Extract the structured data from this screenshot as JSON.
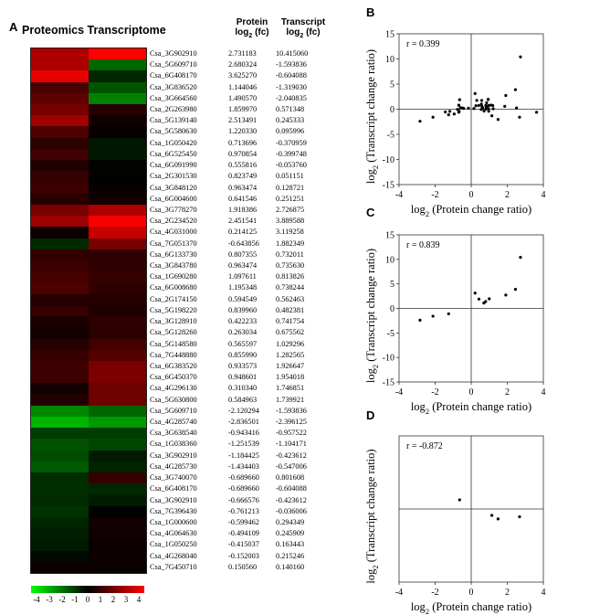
{
  "panels": {
    "A": "A",
    "B": "B",
    "C": "C",
    "D": "D"
  },
  "heatmap": {
    "title": "Proteomics Transcriptome",
    "col_protein": "Protein",
    "col_transcript": "Transcript",
    "log_label": "log",
    "log_sub": "2",
    "fc_label": "(fc)",
    "legend_ticks": [
      "-4",
      "-3",
      "-2",
      "-1",
      "0",
      "1",
      "2",
      "3",
      "4"
    ],
    "colors": {
      "positive": "#ff0000",
      "negative": "#00ff00",
      "zero": "#000000"
    },
    "rows": [
      {
        "gene": "Csa_3G902910",
        "protein": "2.731183",
        "transcript": "10.415060"
      },
      {
        "gene": "Csa_5G609710",
        "protein": "2.680324",
        "transcript": "-1.593836"
      },
      {
        "gene": "Csa_6G408170",
        "protein": "3.625270",
        "transcript": "-0.604088"
      },
      {
        "gene": "Csa_3G836520",
        "protein": "1.144046",
        "transcript": "-1.319030"
      },
      {
        "gene": "Csa_3G664560",
        "protein": "1.490570",
        "transcript": "-2.040835"
      },
      {
        "gene": "Csa_2G263980",
        "protein": "1.859970",
        "transcript": "0.571348"
      },
      {
        "gene": "Csa_5G139140",
        "protein": "2.513491",
        "transcript": "0.245333"
      },
      {
        "gene": "Csa_5G580630",
        "protein": "1.220330",
        "transcript": "0.095996"
      },
      {
        "gene": "Csa_1G050420",
        "protein": "0.713696",
        "transcript": "-0.370959"
      },
      {
        "gene": "Csa_6G525450",
        "protein": "0.970854",
        "transcript": "-0.399748"
      },
      {
        "gene": "Csa_6G091990",
        "protein": "0.555816",
        "transcript": "-0.053760"
      },
      {
        "gene": "Csa_2G301530",
        "protein": "0.823749",
        "transcript": "0.051151"
      },
      {
        "gene": "Csa_3G848120",
        "protein": "0.963474",
        "transcript": "0.128721"
      },
      {
        "gene": "Csa_6G004600",
        "protein": "0.641546",
        "transcript": "0.251251"
      },
      {
        "gene": "Csa_3G778270",
        "protein": "1.918386",
        "transcript": "2.726875"
      },
      {
        "gene": "Csa_2G234520",
        "protein": "2.451541",
        "transcript": "3.889588"
      },
      {
        "gene": "Csa_4G031000",
        "protein": "0.214125",
        "transcript": "3.119258"
      },
      {
        "gene": "Csa_7G051370",
        "protein": "-0.643856",
        "transcript": "1.882349"
      },
      {
        "gene": "Csa_6G133730",
        "protein": "0.807355",
        "transcript": "0.732011"
      },
      {
        "gene": "Csa_3G843780",
        "protein": "0.963474",
        "transcript": "0.735630"
      },
      {
        "gene": "Csa_1G690280",
        "protein": "1.097611",
        "transcript": "0.813826"
      },
      {
        "gene": "Csa_6G008680",
        "protein": "1.195348",
        "transcript": "0.738244"
      },
      {
        "gene": "Csa_2G174150",
        "protein": "0.594549",
        "transcript": "0.562463"
      },
      {
        "gene": "Csa_5G198220",
        "protein": "0.839960",
        "transcript": "0.482381"
      },
      {
        "gene": "Csa_3G128910",
        "protein": "0.422233",
        "transcript": "0.741754"
      },
      {
        "gene": "Csa_5G128260",
        "protein": "0.263034",
        "transcript": "0.675562"
      },
      {
        "gene": "Csa_5G148580",
        "protein": "0.565597",
        "transcript": "1.029296"
      },
      {
        "gene": "Csa_7G448880",
        "protein": "0.855990",
        "transcript": "1.282565"
      },
      {
        "gene": "Csa_6G383520",
        "protein": "0.933573",
        "transcript": "1.926647"
      },
      {
        "gene": "Csa_6G450370",
        "protein": "0.948601",
        "transcript": "1.954018"
      },
      {
        "gene": "Csa_4G296130",
        "protein": "0.310340",
        "transcript": "1.746851"
      },
      {
        "gene": "Csa_5G630800",
        "protein": "0.584963",
        "transcript": "1.739921"
      },
      {
        "gene": "Csa_5G609710",
        "protein": "-2.120294",
        "transcript": "-1.593836"
      },
      {
        "gene": "Csa_4G285740",
        "protein": "-2.836501",
        "transcript": "-2.396125"
      },
      {
        "gene": "Csa_3G638540",
        "protein": "-0.943416",
        "transcript": "-0.957522"
      },
      {
        "gene": "Csa_1G038360",
        "protein": "-1.251539",
        "transcript": "-1.104171"
      },
      {
        "gene": "Csa_3G902910",
        "protein": "-1.184425",
        "transcript": "-0.423612"
      },
      {
        "gene": "Csa_4G285730",
        "protein": "-1.434403",
        "transcript": "-0.547006"
      },
      {
        "gene": "Csa_3G740070",
        "protein": "-0.689660",
        "transcript": "0.801608"
      },
      {
        "gene": "Csa_6G408170",
        "protein": "-0.689660",
        "transcript": "-0.604088"
      },
      {
        "gene": "Csa_3G902910",
        "protein": "-0.666576",
        "transcript": "-0.423612"
      },
      {
        "gene": "Csa_7G396430",
        "protein": "-0.761213",
        "transcript": "-0.036006"
      },
      {
        "gene": "Csa_1G000600",
        "protein": "-0.599462",
        "transcript": "0.294349"
      },
      {
        "gene": "Csa_4G064630",
        "protein": "-0.494109",
        "transcript": "0.245909"
      },
      {
        "gene": "Csa_1G050250",
        "protein": "-0.415037",
        "transcript": "0.163443"
      },
      {
        "gene": "Csa_4G268040",
        "protein": "-0.152003",
        "transcript": "0.215246"
      },
      {
        "gene": "Csa_7G450710",
        "protein": "0.150560",
        "transcript": "0.140160"
      }
    ]
  },
  "chart_data": [
    {
      "type": "scatter",
      "panel": "B",
      "annotation": "r = 0.399",
      "xlabel_log": "log",
      "xlabel_sub": "2",
      "xlabel_text": "(Protein change ratio)",
      "ylabel_log": "log",
      "ylabel_sub": "2",
      "ylabel_text": "(Transcript change ratio)",
      "xlim": [
        -4,
        4
      ],
      "ylim": [
        -15,
        15
      ],
      "xticks": [
        -4,
        -2,
        0,
        2,
        4
      ],
      "yticks": [
        15,
        10,
        5,
        0,
        -5,
        -10,
        -15
      ],
      "points": [
        [
          2.731183,
          10.41506
        ],
        [
          2.680324,
          -1.593836
        ],
        [
          3.62527,
          -0.604088
        ],
        [
          1.144046,
          -1.31903
        ],
        [
          1.49057,
          -2.040835
        ],
        [
          1.85997,
          0.571348
        ],
        [
          2.513491,
          0.245333
        ],
        [
          1.22033,
          0.095996
        ],
        [
          0.713696,
          -0.370959
        ],
        [
          0.970854,
          -0.399748
        ],
        [
          0.555816,
          -0.05376
        ],
        [
          0.823749,
          0.051151
        ],
        [
          0.963474,
          0.128721
        ],
        [
          0.641546,
          0.251251
        ],
        [
          1.918386,
          2.726875
        ],
        [
          2.451541,
          3.889588
        ],
        [
          0.214125,
          3.119258
        ],
        [
          -0.643856,
          1.882349
        ],
        [
          0.807355,
          0.732011
        ],
        [
          0.963474,
          0.73563
        ],
        [
          1.097611,
          0.813826
        ],
        [
          1.195348,
          0.738244
        ],
        [
          0.594549,
          0.562463
        ],
        [
          0.83996,
          0.482381
        ],
        [
          0.422233,
          0.741754
        ],
        [
          0.263034,
          0.675562
        ],
        [
          0.565597,
          1.029296
        ],
        [
          0.85599,
          1.282565
        ],
        [
          0.933573,
          1.926647
        ],
        [
          0.948601,
          1.954018
        ],
        [
          0.31034,
          1.746851
        ],
        [
          0.584963,
          1.739921
        ],
        [
          -2.120294,
          -1.593836
        ],
        [
          -2.836501,
          -2.396125
        ],
        [
          -0.943416,
          -0.957522
        ],
        [
          -1.251539,
          -1.104171
        ],
        [
          -1.184425,
          -0.423612
        ],
        [
          -1.434403,
          -0.547006
        ],
        [
          -0.68966,
          0.801608
        ],
        [
          -0.68966,
          -0.604088
        ],
        [
          -0.666576,
          -0.423612
        ],
        [
          -0.761213,
          -0.036006
        ],
        [
          -0.599462,
          0.294349
        ],
        [
          -0.494109,
          0.245909
        ],
        [
          -0.415037,
          0.163443
        ],
        [
          -0.152003,
          0.215246
        ],
        [
          0.15056,
          0.14016
        ]
      ]
    },
    {
      "type": "scatter",
      "panel": "C",
      "annotation": "r = 0.839",
      "xlabel_log": "log",
      "xlabel_sub": "2",
      "xlabel_text": "(Protein change ratio)",
      "ylabel_log": "log",
      "ylabel_sub": "2",
      "ylabel_text": "(Transcript change ratio)",
      "xlim": [
        -4,
        4
      ],
      "ylim": [
        -15,
        15
      ],
      "xticks": [
        -4,
        -2,
        0,
        2,
        4
      ],
      "yticks": [
        15,
        10,
        5,
        0,
        -5,
        -10,
        -15
      ],
      "points": [
        [
          2.731183,
          10.41506
        ],
        [
          1.918386,
          2.726875
        ],
        [
          2.451541,
          3.889588
        ],
        [
          0.214125,
          3.119258
        ],
        [
          0.43,
          1.9
        ],
        [
          0.8,
          1.4
        ],
        [
          1.0,
          1.95
        ],
        [
          0.7,
          1.1
        ],
        [
          -2.836501,
          -2.396125
        ],
        [
          -2.120294,
          -1.593836
        ],
        [
          -1.251539,
          -1.104171
        ]
      ]
    },
    {
      "type": "scatter",
      "panel": "D",
      "annotation": "r = -0.872",
      "xlabel_log": "log",
      "xlabel_sub": "2",
      "xlabel_text": "(Protein change ratio)",
      "ylabel_log": "log",
      "ylabel_sub": "2",
      "ylabel_text": "(Transcript change ratio)",
      "xlim": [
        -4,
        4
      ],
      "ylim": [
        -15,
        15
      ],
      "xticks": [
        -4,
        -2,
        0,
        2,
        4
      ],
      "yticks": [],
      "points": [
        [
          -0.643856,
          1.882349
        ],
        [
          1.144046,
          -1.31903
        ],
        [
          1.49057,
          -2.040835
        ],
        [
          2.680324,
          -1.593836
        ]
      ]
    }
  ]
}
